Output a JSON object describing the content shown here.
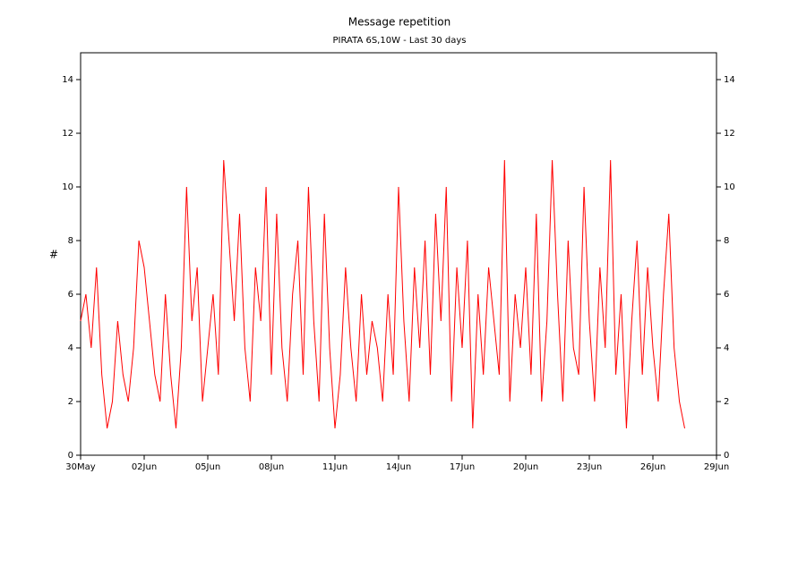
{
  "chart_data": {
    "type": "line",
    "title": "Message repetition",
    "subtitle": "PIRATA 6S,10W - Last 30 days",
    "y_label": "#",
    "x": [
      0,
      0.25,
      0.5,
      0.75,
      1,
      1.25,
      1.5,
      1.75,
      2,
      2.25,
      2.5,
      2.75,
      3,
      3.25,
      3.5,
      3.75,
      4,
      4.25,
      4.5,
      4.75,
      5,
      5.25,
      5.5,
      5.75,
      6,
      6.25,
      6.5,
      6.75,
      7,
      7.25,
      7.5,
      7.75,
      8,
      8.25,
      8.5,
      8.75,
      9,
      9.25,
      9.5,
      9.75,
      10,
      10.25,
      10.5,
      10.75,
      11,
      11.25,
      11.5,
      11.75,
      12,
      12.25,
      12.5,
      12.75,
      13,
      13.25,
      13.5,
      13.75,
      14,
      14.25,
      14.5,
      14.75,
      15,
      15.25,
      15.5,
      15.75,
      16,
      16.25,
      16.5,
      16.75,
      17,
      17.25,
      17.5,
      17.75,
      18,
      18.25,
      18.5,
      18.75,
      19,
      19.25,
      19.5,
      19.75,
      20,
      20.25,
      20.5,
      20.75,
      21,
      21.25,
      21.5,
      21.75,
      22,
      22.25,
      22.5,
      22.75,
      23,
      23.25,
      23.5,
      23.75,
      24,
      24.25,
      24.5,
      24.75,
      25,
      25.25,
      25.5,
      25.75,
      26,
      26.25,
      26.5,
      26.75,
      27,
      27.25,
      27.5,
      27.75,
      28,
      28.25,
      28.5
    ],
    "series": [
      {
        "name": "Message repetition",
        "color": "#ff0000",
        "values": [
          5,
          6,
          4,
          7,
          3,
          1,
          2,
          5,
          3,
          2,
          4,
          8,
          7,
          5,
          3,
          2,
          6,
          3,
          1,
          4,
          10,
          5,
          7,
          2,
          4,
          6,
          3,
          11,
          8,
          5,
          9,
          4,
          2,
          7,
          5,
          10,
          3,
          9,
          4,
          2,
          6,
          8,
          3,
          10,
          5,
          2,
          9,
          4,
          1,
          3,
          7,
          4,
          2,
          6,
          3,
          5,
          4,
          2,
          6,
          3,
          10,
          5,
          2,
          7,
          4,
          8,
          3,
          9,
          5,
          10,
          2,
          7,
          4,
          8,
          1,
          6,
          3,
          7,
          5,
          3,
          11,
          2,
          6,
          4,
          7,
          3,
          9,
          2,
          5,
          11,
          6,
          2,
          8,
          4,
          3,
          10,
          5,
          2,
          7,
          4,
          11,
          3,
          6,
          1,
          5,
          8,
          3,
          7,
          4,
          2,
          6,
          9,
          4,
          2,
          1
        ]
      }
    ],
    "xlim": [
      0,
      30
    ],
    "ylim": [
      0,
      15
    ],
    "xticks": [
      {
        "value": 0,
        "label": "30May"
      },
      {
        "value": 3,
        "label": "02Jun"
      },
      {
        "value": 6,
        "label": "05Jun"
      },
      {
        "value": 9,
        "label": "08Jun"
      },
      {
        "value": 12,
        "label": "11Jun"
      },
      {
        "value": 15,
        "label": "14Jun"
      },
      {
        "value": 18,
        "label": "17Jun"
      },
      {
        "value": 21,
        "label": "20Jun"
      },
      {
        "value": 24,
        "label": "23Jun"
      },
      {
        "value": 27,
        "label": "26Jun"
      },
      {
        "value": 30,
        "label": "29Jun"
      }
    ],
    "yticks": [
      0,
      2,
      4,
      6,
      8,
      10,
      12,
      14
    ],
    "grid": false
  }
}
